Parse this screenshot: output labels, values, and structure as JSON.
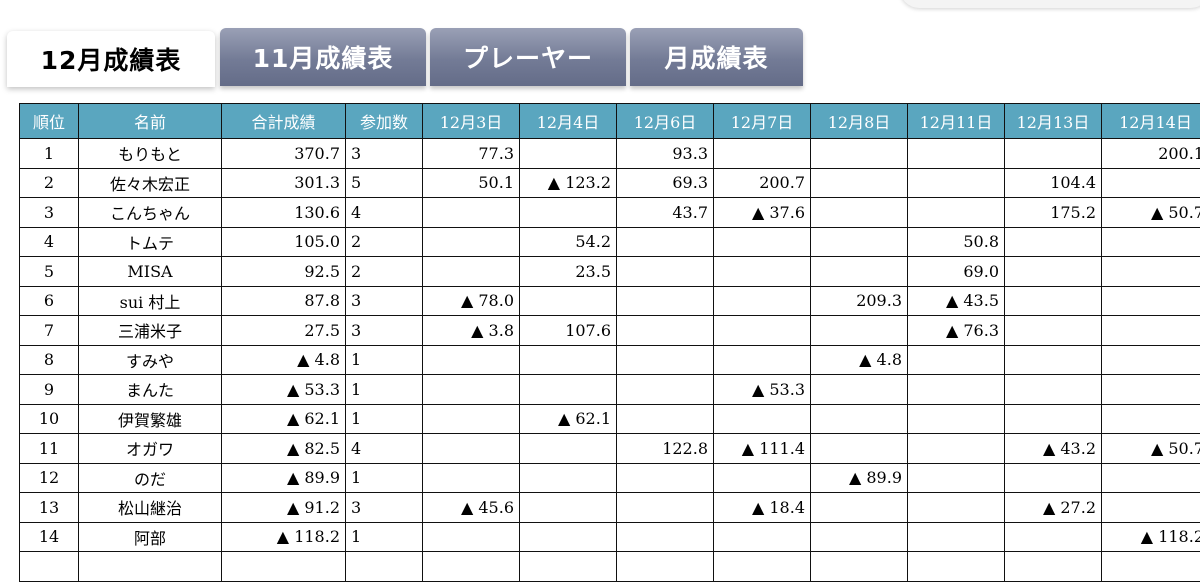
{
  "tabs": [
    {
      "label": "12月成績表",
      "active": true
    },
    {
      "label": "11月成績表",
      "active": false
    },
    {
      "label": "プレーヤー",
      "active": false
    },
    {
      "label": "月成績表",
      "active": false
    }
  ],
  "colors": {
    "header_bg": "#5aa6bf",
    "tab_bg": "#737b96"
  },
  "table": {
    "headers": [
      "順位",
      "名前",
      "合計成績",
      "参加数",
      "12月3日",
      "12月4日",
      "12月6日",
      "12月7日",
      "12月8日",
      "12月11日",
      "12月13日",
      "12月14日"
    ],
    "rows": [
      [
        "1",
        "もりもと",
        "370.7",
        "3",
        "77.3",
        "",
        "93.3",
        "",
        "",
        "",
        "",
        "200.1"
      ],
      [
        "2",
        "佐々木宏正",
        "301.3",
        "5",
        "50.1",
        "▲ 123.2",
        "69.3",
        "200.7",
        "",
        "",
        "104.4",
        ""
      ],
      [
        "3",
        "こんちゃん",
        "130.6",
        "4",
        "",
        "",
        "43.7",
        "▲ 37.6",
        "",
        "",
        "175.2",
        "▲ 50.7"
      ],
      [
        "4",
        "トムテ",
        "105.0",
        "2",
        "",
        "54.2",
        "",
        "",
        "",
        "50.8",
        "",
        ""
      ],
      [
        "5",
        "MISA",
        "92.5",
        "2",
        "",
        "23.5",
        "",
        "",
        "",
        "69.0",
        "",
        ""
      ],
      [
        "6",
        "sui 村上",
        "87.8",
        "3",
        "▲ 78.0",
        "",
        "",
        "",
        "209.3",
        "▲ 43.5",
        "",
        ""
      ],
      [
        "7",
        "三浦米子",
        "27.5",
        "3",
        "▲ 3.8",
        "107.6",
        "",
        "",
        "",
        "▲ 76.3",
        "",
        ""
      ],
      [
        "8",
        "すみや",
        "▲ 4.8",
        "1",
        "",
        "",
        "",
        "",
        "▲ 4.8",
        "",
        "",
        ""
      ],
      [
        "9",
        "まんた",
        "▲ 53.3",
        "1",
        "",
        "",
        "",
        "▲ 53.3",
        "",
        "",
        "",
        ""
      ],
      [
        "10",
        "伊賀繁雄",
        "▲ 62.1",
        "1",
        "",
        "▲ 62.1",
        "",
        "",
        "",
        "",
        "",
        ""
      ],
      [
        "11",
        "オガワ",
        "▲ 82.5",
        "4",
        "",
        "",
        "122.8",
        "▲ 111.4",
        "",
        "",
        "▲ 43.2",
        "▲ 50.7"
      ],
      [
        "12",
        "のだ",
        "▲ 89.9",
        "1",
        "",
        "",
        "",
        "",
        "▲ 89.9",
        "",
        "",
        ""
      ],
      [
        "13",
        "松山継治",
        "▲ 91.2",
        "3",
        "▲ 45.6",
        "",
        "",
        "▲ 18.4",
        "",
        "",
        "▲ 27.2",
        ""
      ],
      [
        "14",
        "阿部",
        "▲ 118.2",
        "1",
        "",
        "",
        "",
        "",
        "",
        "",
        "",
        "▲ 118.2"
      ],
      [
        "",
        "",
        "",
        "",
        "",
        "",
        "",
        "",
        "",
        "",
        "",
        ""
      ]
    ]
  }
}
